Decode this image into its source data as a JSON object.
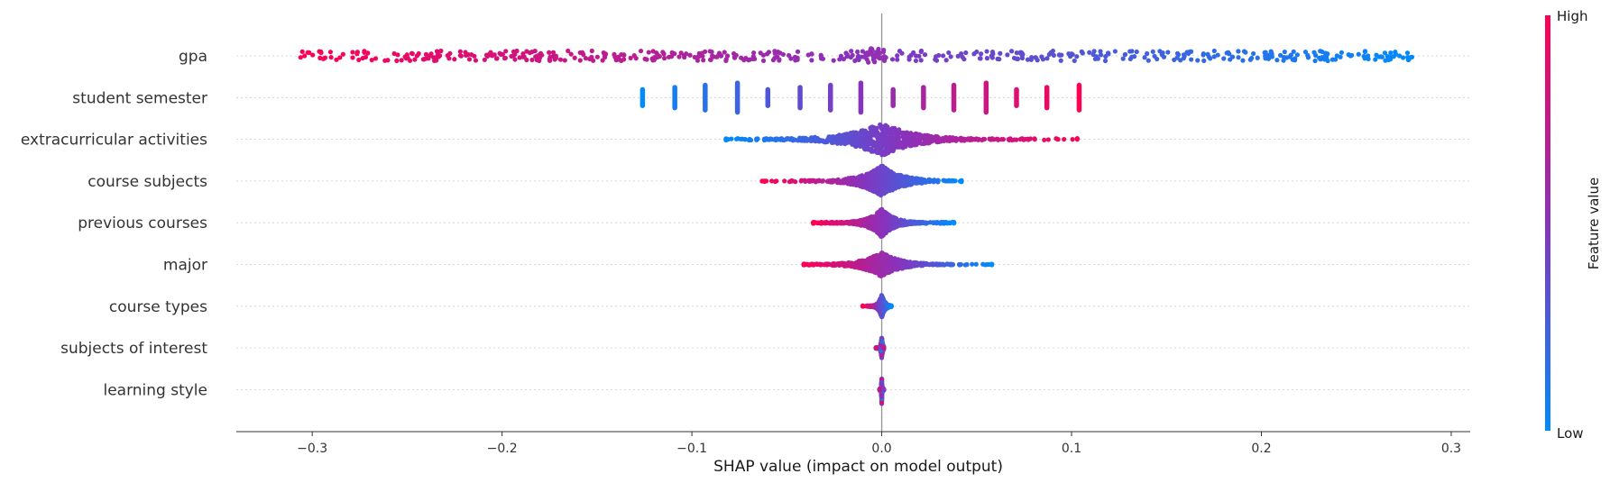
{
  "chart_data": {
    "type": "scatter",
    "subtype": "shap-beeswarm",
    "title": "",
    "xlabel": "SHAP value (impact on model output)",
    "xlim": [
      -0.34,
      0.31
    ],
    "x_ticks": [
      -0.3,
      -0.2,
      -0.1,
      0.0,
      0.1,
      0.2,
      0.3
    ],
    "x_tick_labels": [
      "−0.3",
      "−0.2",
      "−0.1",
      "0.0",
      "0.1",
      "0.2",
      "0.3"
    ],
    "zero_line": 0,
    "colorbar": {
      "label": "Feature value",
      "high_label": "High",
      "low_label": "Low",
      "high_color": "#ff0052",
      "low_color": "#008bfb"
    },
    "series": [
      {
        "name": "gpa",
        "kind": "continuous",
        "range": [
          -0.307,
          0.28
        ],
        "direction": "high-negative",
        "spread": "uniform",
        "band": 0.12
      },
      {
        "name": "student semester",
        "kind": "discrete",
        "values": [
          -0.126,
          -0.109,
          -0.093,
          -0.076,
          -0.06,
          -0.043,
          -0.027,
          -0.011,
          0.006,
          0.022,
          0.038,
          0.055,
          0.071,
          0.087,
          0.104
        ],
        "direction": "high-positive",
        "band": 0.35
      },
      {
        "name": "extracurricular activities",
        "kind": "continuous",
        "range": [
          -0.082,
          0.103
        ],
        "direction": "high-positive",
        "spread": "centered",
        "band": 0.4
      },
      {
        "name": "course subjects",
        "kind": "continuous",
        "range": [
          -0.063,
          0.042
        ],
        "direction": "high-negative",
        "spread": "centered",
        "band": 0.38
      },
      {
        "name": "previous courses",
        "kind": "continuous",
        "range": [
          -0.036,
          0.038
        ],
        "direction": "high-negative",
        "spread": "centered",
        "band": 0.35
      },
      {
        "name": "major",
        "kind": "continuous",
        "range": [
          -0.041,
          0.058
        ],
        "direction": "high-negative",
        "spread": "centered",
        "band": 0.3
      },
      {
        "name": "course types",
        "kind": "continuous",
        "range": [
          -0.01,
          0.005
        ],
        "direction": "high-negative",
        "spread": "centered",
        "band": 0.28
      },
      {
        "name": "subjects of interest",
        "kind": "continuous",
        "range": [
          -0.003,
          0.001
        ],
        "direction": "mixed",
        "spread": "centered",
        "band": 0.25
      },
      {
        "name": "learning style",
        "kind": "continuous",
        "range": [
          -0.001,
          0.001
        ],
        "direction": "mixed",
        "spread": "centered",
        "band": 0.35
      }
    ]
  }
}
